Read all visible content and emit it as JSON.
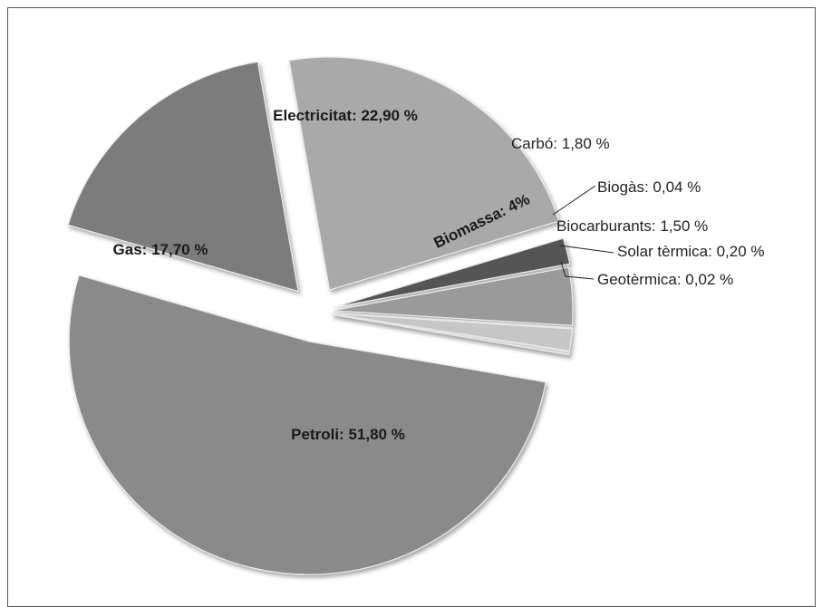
{
  "chart_data": {
    "type": "pie",
    "exploded": true,
    "slices": [
      {
        "name": "Petroli",
        "value": 51.8,
        "label": "Petroli: 51,80 %",
        "color": "#8a8a8a"
      },
      {
        "name": "Gas",
        "value": 17.7,
        "label": "Gas: 17,70 %",
        "color": "#7c7c7c"
      },
      {
        "name": "Electricitat",
        "value": 22.9,
        "label": "Electricitat: 22,90 %",
        "color": "#a9a9a9"
      },
      {
        "name": "Carbó",
        "value": 1.8,
        "label": "Carbó: 1,80 %",
        "color": "#555555"
      },
      {
        "name": "Biomassa",
        "value": 4,
        "label": "Biomassa: 4%",
        "color": "#9a9a9a"
      },
      {
        "name": "Biogàs",
        "value": 0.04,
        "label": "Biogàs: 0,04 %",
        "color": "#333333"
      },
      {
        "name": "Biocarburants",
        "value": 1.5,
        "label": "Biocarburants: 1,50 %",
        "color": "#c6c6c6"
      },
      {
        "name": "Solar tèrmica",
        "value": 0.2,
        "label": "Solar tèrmica: 0,20 %",
        "color": "#d4d4d4"
      },
      {
        "name": "Geotèrmica",
        "value": 0.02,
        "label": "Geotèrmica: 0,02 %",
        "color": "#444444"
      }
    ],
    "title": "",
    "legend": "none"
  }
}
